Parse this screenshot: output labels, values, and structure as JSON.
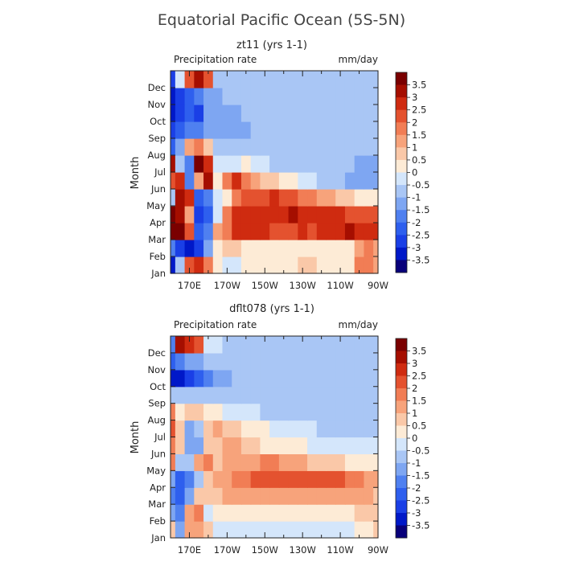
{
  "title": "Equatorial Pacific Ocean (5S-5N)",
  "colors": {
    "scale": [
      "#08007a",
      "#0018c8",
      "#1a3fe6",
      "#2e5fee",
      "#4f80f0",
      "#7ea6f2",
      "#a9c6f5",
      "#d4e6fb",
      "#fdebd6",
      "#fac8a8",
      "#f7a37b",
      "#f17d55",
      "#e4522f",
      "#cf2b10",
      "#a50e00",
      "#7a0000"
    ]
  },
  "chart_data": [
    {
      "type": "heatmap",
      "title": "zt11 (yrs 1-1)",
      "variable": "Precipitation rate",
      "units": "mm/day",
      "ylabel": "Month",
      "xlabel": "",
      "x": [
        160,
        165,
        170,
        175,
        180,
        185,
        190,
        195,
        200,
        205,
        210,
        215,
        220,
        225,
        230,
        235,
        240,
        245,
        250,
        255,
        260,
        265,
        270
      ],
      "xlim": [
        160,
        270
      ],
      "x_tick_values": [
        170,
        190,
        210,
        230,
        250,
        270
      ],
      "x_tick_labels": [
        "170E",
        "170W",
        "150W",
        "130W",
        "110W",
        "90W"
      ],
      "y_tick_labels": [
        "Jan",
        "Feb",
        "Mar",
        "Apr",
        "May",
        "Jun",
        "Jul",
        "Aug",
        "Sep",
        "Oct",
        "Nov",
        "Dec"
      ],
      "colorbar_levels": [
        -3.5,
        -3,
        -2.5,
        -2,
        -1.5,
        -1,
        -0.5,
        0,
        0.5,
        1,
        1.5,
        2,
        2.5,
        3,
        3.5
      ],
      "colorbar_labels": [
        "3.5",
        "3",
        "2.5",
        "2",
        "1.5",
        "1",
        "0.5",
        "0",
        "-0.5",
        "-1",
        "-1.5",
        "-2",
        "-2.5",
        "-3",
        "-3.5"
      ],
      "values": [
        [
          -3.2,
          -1.0,
          2.0,
          2.5,
          1.5,
          0.3,
          -0.2,
          -0.1,
          0.0,
          0.2,
          0.2,
          0.3,
          0.3,
          0.4,
          0.5,
          0.5,
          0.4,
          0.3,
          0.2,
          0.4,
          1.5,
          1.8,
          1.0
        ],
        [
          -1.8,
          -3.0,
          -3.2,
          -3.0,
          -1.5,
          0.2,
          0.5,
          0.5,
          0.4,
          0.3,
          0.3,
          0.3,
          0.2,
          0.3,
          0.3,
          0.4,
          0.4,
          0.3,
          0.3,
          0.3,
          1.2,
          1.5,
          1.0
        ],
        [
          3.5,
          3.5,
          2.0,
          -2.5,
          -2.0,
          1.0,
          1.8,
          2.5,
          2.8,
          2.6,
          2.5,
          2.4,
          2.3,
          2.4,
          2.6,
          2.4,
          2.5,
          2.8,
          2.7,
          3.0,
          2.8,
          2.6,
          2.5
        ],
        [
          3.5,
          3.0,
          1.0,
          -3.0,
          -2.5,
          -0.5,
          1.5,
          2.8,
          2.5,
          2.6,
          2.7,
          2.8,
          2.6,
          3.0,
          2.6,
          2.6,
          2.7,
          2.6,
          2.7,
          2.4,
          2.3,
          2.4,
          2.2
        ],
        [
          -1.0,
          3.0,
          2.5,
          -2.5,
          -2.0,
          -0.5,
          0.2,
          1.8,
          2.0,
          2.2,
          2.4,
          2.5,
          2.0,
          2.2,
          1.5,
          1.5,
          1.2,
          1.0,
          0.6,
          0.5,
          0.3,
          0.1,
          0.0
        ],
        [
          2.0,
          2.5,
          -2.0,
          1.0,
          3.0,
          0.0,
          1.5,
          2.5,
          1.8,
          1.2,
          0.8,
          0.5,
          0.2,
          0.0,
          -0.3,
          -0.5,
          -0.7,
          -0.9,
          -1.0,
          -1.1,
          -1.1,
          -1.1,
          -1.1
        ],
        [
          3.0,
          -1.0,
          -2.0,
          3.5,
          2.5,
          -0.4,
          -0.5,
          -0.2,
          0.0,
          -0.3,
          -0.5,
          -0.6,
          -0.7,
          -0.8,
          -0.9,
          -0.9,
          -1.0,
          -1.0,
          -1.0,
          -1.0,
          -1.1,
          -1.1,
          -1.1
        ],
        [
          -2.5,
          -1.5,
          1.0,
          1.5,
          0.5,
          -0.6,
          -0.8,
          -1.0,
          -1.0,
          -1.0,
          -1.0,
          -1.0,
          -1.0,
          -1.0,
          -1.0,
          -1.0,
          -1.0,
          -1.0,
          -1.0,
          -1.0,
          -1.0,
          -1.0,
          -1.0
        ],
        [
          -3.0,
          -2.5,
          -2.0,
          -2.0,
          -1.5,
          -1.2,
          -1.2,
          -1.2,
          -1.2,
          -1.0,
          -1.0,
          -1.0,
          -1.0,
          -1.0,
          -0.8,
          -1.0,
          -1.0,
          -1.0,
          -1.0,
          -1.0,
          -1.0,
          -1.0,
          -1.0
        ],
        [
          -3.5,
          -3.0,
          -2.5,
          -3.0,
          -1.5,
          -1.2,
          -1.2,
          -1.2,
          -1.0,
          -1.0,
          -0.8,
          -1.0,
          -0.8,
          -1.0,
          -0.8,
          -0.8,
          -0.8,
          -1.0,
          -0.8,
          -1.0,
          -1.0,
          -1.0,
          -1.0
        ],
        [
          -3.5,
          -3.0,
          -2.5,
          -2.0,
          -1.5,
          -1.2,
          -1.0,
          -1.0,
          -1.0,
          -0.8,
          -0.8,
          -0.8,
          -0.8,
          -0.8,
          -0.8,
          -0.8,
          -0.8,
          -0.8,
          -0.8,
          -0.8,
          -0.8,
          -1.0,
          -1.0
        ],
        [
          -3.0,
          -0.5,
          2.0,
          3.0,
          2.0,
          -1.0,
          -1.0,
          -0.8,
          -0.8,
          -0.8,
          -0.8,
          -0.8,
          -0.8,
          -0.8,
          -0.8,
          -0.8,
          -0.8,
          -0.8,
          -0.8,
          -0.8,
          -0.8,
          -1.0,
          -1.0
        ]
      ]
    },
    {
      "type": "heatmap",
      "title": "dflt078 (yrs 1-1)",
      "variable": "Precipitation rate",
      "units": "mm/day",
      "ylabel": "Month",
      "xlabel": "",
      "x": [
        160,
        165,
        170,
        175,
        180,
        185,
        190,
        195,
        200,
        205,
        210,
        215,
        220,
        225,
        230,
        235,
        240,
        245,
        250,
        255,
        260,
        265,
        270
      ],
      "xlim": [
        160,
        270
      ],
      "x_tick_values": [
        170,
        190,
        210,
        230,
        250,
        270
      ],
      "x_tick_labels": [
        "170E",
        "170W",
        "150W",
        "130W",
        "110W",
        "90W"
      ],
      "y_tick_labels": [
        "Jan",
        "Feb",
        "Mar",
        "Apr",
        "May",
        "Jun",
        "Jul",
        "Aug",
        "Sep",
        "Oct",
        "Nov",
        "Dec"
      ],
      "colorbar_levels": [
        -3.5,
        -3,
        -2.5,
        -2,
        -1.5,
        -1,
        -0.5,
        0,
        0.5,
        1,
        1.5,
        2,
        2.5,
        3,
        3.5
      ],
      "colorbar_labels": [
        "3.5",
        "3",
        "2.5",
        "2",
        "1.5",
        "1",
        "0.5",
        "0",
        "-0.5",
        "-1",
        "-1.5",
        "-2",
        "-2.5",
        "-3",
        "-3.5"
      ],
      "values": [
        [
          0.5,
          -1.5,
          1.0,
          1.0,
          0.5,
          -0.2,
          -0.3,
          -0.3,
          -0.2,
          -0.2,
          -0.2,
          -0.2,
          -0.2,
          -0.2,
          -0.2,
          -0.2,
          -0.2,
          -0.2,
          -0.2,
          -0.1,
          0.2,
          0.3,
          0.5
        ],
        [
          -1.5,
          -2.0,
          1.0,
          1.5,
          -0.5,
          0.0,
          0.2,
          0.3,
          0.3,
          0.3,
          0.3,
          0.3,
          0.2,
          0.2,
          0.2,
          0.2,
          0.2,
          0.2,
          0.2,
          0.3,
          0.6,
          0.8,
          0.5
        ],
        [
          -2.0,
          -2.5,
          -1.5,
          0.5,
          0.5,
          0.8,
          1.0,
          1.2,
          1.2,
          1.3,
          1.4,
          1.4,
          1.3,
          1.4,
          1.4,
          1.3,
          1.3,
          1.2,
          1.2,
          1.1,
          1.0,
          1.0,
          0.8
        ],
        [
          -1.5,
          -2.5,
          -2.0,
          -1.0,
          0.8,
          1.0,
          1.2,
          1.5,
          1.8,
          2.0,
          2.2,
          2.4,
          2.3,
          2.2,
          2.3,
          2.4,
          2.2,
          2.3,
          2.0,
          1.8,
          1.5,
          1.3,
          1.0
        ],
        [
          1.5,
          -1.0,
          -1.0,
          1.0,
          1.5,
          0.8,
          1.0,
          1.3,
          1.4,
          1.4,
          1.5,
          1.5,
          1.3,
          1.2,
          1.0,
          0.8,
          0.6,
          0.5,
          0.5,
          0.4,
          0.3,
          0.2,
          0.2
        ],
        [
          1.5,
          0.5,
          -1.5,
          -1.2,
          0.8,
          0.8,
          1.0,
          1.0,
          0.8,
          0.6,
          0.4,
          0.3,
          0.2,
          0.1,
          0.0,
          -0.1,
          -0.2,
          -0.3,
          -0.4,
          -0.4,
          -0.5,
          -0.5,
          -0.5
        ],
        [
          2.0,
          0.5,
          -1.5,
          -1.0,
          0.8,
          1.0,
          0.8,
          0.6,
          0.4,
          0.2,
          0.0,
          -0.2,
          -0.3,
          -0.4,
          -0.5,
          -0.5,
          -0.6,
          -0.6,
          -0.7,
          -0.7,
          -0.7,
          -0.7,
          -0.7
        ],
        [
          1.5,
          0.3,
          0.5,
          0.5,
          0.4,
          0.0,
          -0.2,
          -0.3,
          -0.4,
          -0.5,
          -0.6,
          -0.6,
          -0.6,
          -0.7,
          -0.7,
          -0.7,
          -0.7,
          -0.7,
          -0.7,
          -0.7,
          -0.7,
          -0.7,
          -0.7
        ],
        [
          -1.0,
          -1.0,
          -0.8,
          -0.8,
          -0.8,
          -0.7,
          -0.7,
          -0.7,
          -0.7,
          -0.7,
          -0.7,
          -0.7,
          -0.7,
          -0.7,
          -0.7,
          -0.7,
          -0.7,
          -0.7,
          -0.7,
          -0.7,
          -0.7,
          -0.7,
          -0.7
        ],
        [
          -3.5,
          -3.5,
          -3.0,
          -2.5,
          -2.0,
          -1.5,
          -1.2,
          -1.0,
          -1.0,
          -0.8,
          -0.8,
          -0.7,
          -0.7,
          -0.7,
          -0.7,
          -0.7,
          -0.7,
          -0.7,
          -0.7,
          -0.7,
          -0.7,
          -0.7,
          -0.7
        ],
        [
          -2.5,
          -2.0,
          -1.5,
          -1.2,
          -1.0,
          -1.0,
          -0.8,
          -0.8,
          -0.7,
          -0.7,
          -0.7,
          -0.7,
          -0.7,
          -0.7,
          -0.7,
          -0.7,
          -0.7,
          -0.7,
          -0.7,
          -0.7,
          -0.7,
          -0.7,
          -0.7
        ],
        [
          -2.0,
          3.2,
          2.8,
          2.0,
          -0.5,
          -0.5,
          -0.6,
          -0.6,
          -0.6,
          -0.6,
          -0.6,
          -0.6,
          -0.6,
          -0.6,
          -0.6,
          -0.6,
          -0.6,
          -0.6,
          -0.6,
          -0.6,
          -0.6,
          -0.6,
          -0.6
        ]
      ]
    }
  ]
}
